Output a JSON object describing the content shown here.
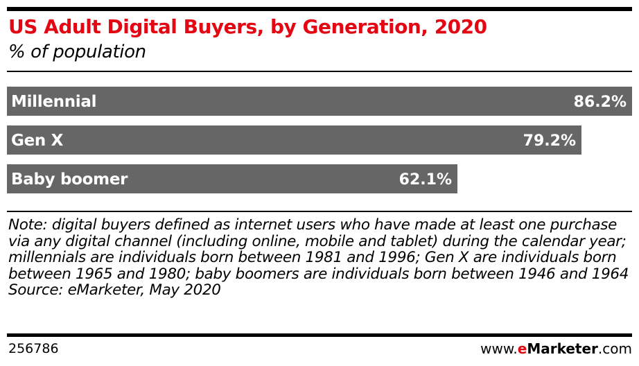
{
  "header": {
    "title": "US Adult Digital Buyers, by Generation, 2020",
    "subtitle": "% of population"
  },
  "chart_data": {
    "type": "bar",
    "orientation": "horizontal",
    "title": "US Adult Digital Buyers, by Generation, 2020",
    "subtitle": "% of population",
    "categories": [
      "Millennial",
      "Gen X",
      "Baby boomer"
    ],
    "values": [
      86.2,
      79.2,
      62.1
    ],
    "value_labels": [
      "86.2%",
      "79.2%",
      "62.1%"
    ],
    "xlim": [
      0,
      86.2
    ],
    "grid": false,
    "legend": "none",
    "bar_color": "#666666",
    "label_color": "#ffffff"
  },
  "notes": {
    "note": "Note: digital buyers defined as internet users who have made at least one purchase via any digital channel (including online, mobile and tablet) during the calendar year; millennials are individuals born between 1981 and 1996; Gen X are individuals born between 1965 and 1980; baby boomers are individuals born between 1946 and 1964",
    "source": "Source: eMarketer, May 2020"
  },
  "footer": {
    "chart_id": "256786",
    "brand_prefix": "www.",
    "brand_accent": "e",
    "brand_name": "Marketer",
    "brand_suffix": ".com"
  },
  "colors": {
    "title": "#e30613",
    "bar": "#666666",
    "text": "#000000"
  }
}
